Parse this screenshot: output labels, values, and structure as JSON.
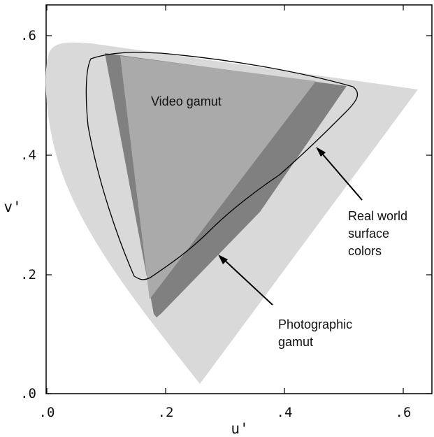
{
  "axes": {
    "x_label": "u'",
    "y_label": "v'",
    "x_ticks": [
      {
        "value": 0.0,
        "label": ".0"
      },
      {
        "value": 0.2,
        "label": ".2"
      },
      {
        "value": 0.4,
        "label": ".4"
      },
      {
        "value": 0.6,
        "label": ".6"
      }
    ],
    "y_ticks": [
      {
        "value": 0.0,
        "label": ".0"
      },
      {
        "value": 0.2,
        "label": ".2"
      },
      {
        "value": 0.4,
        "label": ".4"
      },
      {
        "value": 0.6,
        "label": ".6"
      }
    ]
  },
  "annotations": {
    "video_gamut": "Video gamut",
    "real_world_line1": "Real world",
    "real_world_line2": "surface",
    "real_world_line3": "colors",
    "photographic_line1": "Photographic",
    "photographic_line2": "gamut"
  },
  "colors": {
    "spectral_locus_fill": "#d9d9d9",
    "photographic_gamut_fill": "#808080",
    "video_gamut_fill": "#aaaaaa",
    "surface_colors_stroke": "#000000",
    "arrow": "#000000"
  }
}
